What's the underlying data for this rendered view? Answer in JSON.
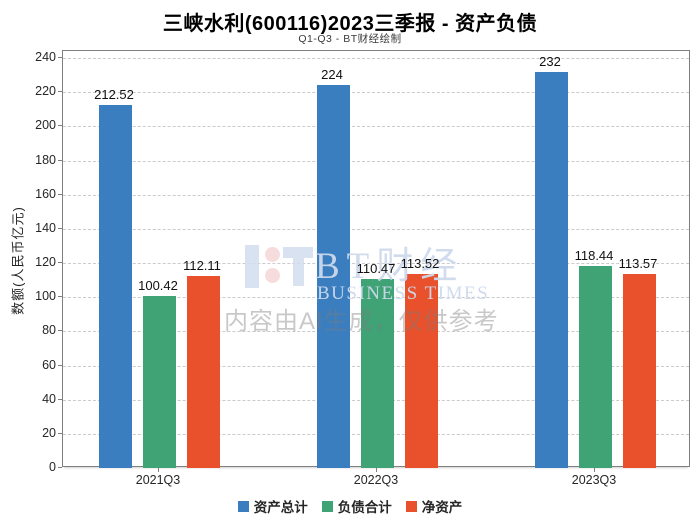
{
  "title": "三峡水利(600116)2023三季报 - 资产负债",
  "subtitle": "Q1-Q3 - BT财经绘制",
  "watermark": {
    "logo": "bt-logo",
    "brand_cn": "BT财经",
    "brand_en": "BUSINESS TIMES",
    "ai_notice": "内容由AI生成，仅供参考"
  },
  "chart_data": {
    "type": "bar",
    "categories": [
      "2021Q3",
      "2022Q3",
      "2023Q3"
    ],
    "series": [
      {
        "name": "资产总计",
        "color": "#3a7ebf",
        "values": [
          212.52,
          224,
          232
        ],
        "labels": [
          "212.52",
          "224",
          "232"
        ]
      },
      {
        "name": "负债合计",
        "color": "#3fa376",
        "values": [
          100.42,
          110.47,
          118.44
        ],
        "labels": [
          "100.42",
          "110.47",
          "118.44"
        ]
      },
      {
        "name": "净资产",
        "color": "#e8512c",
        "values": [
          112.11,
          113.52,
          113.57
        ],
        "labels": [
          "112.11",
          "113.52",
          "113.57"
        ]
      }
    ],
    "ylabel": "数额(人民币亿元)",
    "xlabel": "",
    "ylim": [
      0,
      240
    ],
    "ytick_step": 20,
    "grid": true,
    "grid_style": "dashed",
    "legend_position": "bottom"
  }
}
